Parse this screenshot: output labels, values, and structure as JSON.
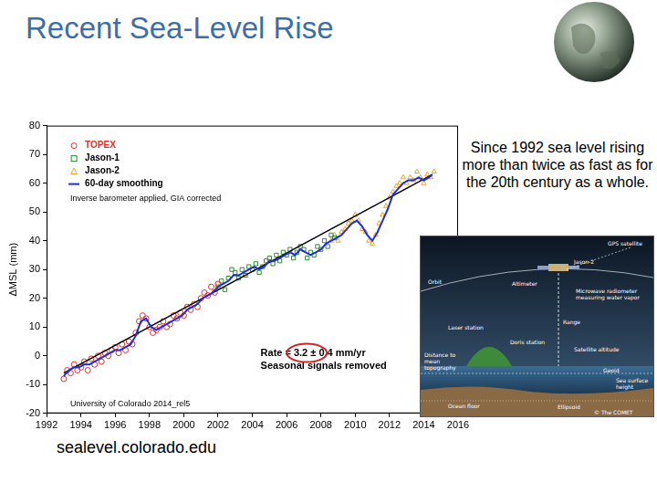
{
  "slide": {
    "title": "Recent Sea-Level Rise",
    "side_text": "Since 1992 sea level rising more than twice as fast as for the 20th century as a whole.",
    "source": "sealevel.colorado.edu"
  },
  "chart_data": {
    "type": "scatter",
    "y_label": "ΔMSL (mm)",
    "xlim": [
      1992,
      2016
    ],
    "xticks": [
      1992,
      1994,
      1996,
      1998,
      2000,
      2002,
      2004,
      2006,
      2008,
      2010,
      2012,
      2014,
      2016
    ],
    "ylim": [
      -20,
      80
    ],
    "yticks": [
      -20,
      -10,
      0,
      10,
      20,
      30,
      40,
      50,
      60,
      70,
      80
    ],
    "grid": false,
    "legend": "upper left",
    "annotations": {
      "note": "Inverse barometer applied, GIA corrected",
      "rate": "Rate = 3.2 ± 0.4 mm/yr",
      "seasonal": "Seasonal signals removed",
      "credit": "University of Colorado 2014_rel5"
    },
    "series": [
      {
        "name": "TOPEX",
        "color": "#e0302a",
        "marker": "circle",
        "x": [
          1993.0,
          1993.2,
          1993.4,
          1993.6,
          1993.8,
          1994.0,
          1994.2,
          1994.4,
          1994.6,
          1994.8,
          1995.0,
          1995.2,
          1995.4,
          1995.6,
          1995.8,
          1996.0,
          1996.2,
          1996.4,
          1996.6,
          1996.8,
          1997.0,
          1997.2,
          1997.4,
          1997.6,
          1997.8,
          1998.0,
          1998.2,
          1998.4,
          1998.6,
          1998.8,
          1999.0,
          1999.2,
          1999.4,
          1999.6,
          1999.8,
          2000.0,
          2000.2,
          2000.4,
          2000.6,
          2000.8,
          2001.0,
          2001.2,
          2001.4,
          2001.6,
          2001.8,
          2002.0
        ],
        "values": [
          -8,
          -5,
          -6,
          -3,
          -5,
          -4,
          -2,
          -5,
          -1,
          -3,
          0,
          -2,
          1,
          0,
          2,
          3,
          1,
          4,
          2,
          5,
          4,
          8,
          12,
          14,
          13,
          10,
          8,
          9,
          10,
          12,
          10,
          11,
          14,
          13,
          15,
          14,
          17,
          16,
          18,
          17,
          20,
          22,
          21,
          24,
          22,
          25
        ]
      },
      {
        "name": "Jason-1",
        "color": "#2e8b2e",
        "marker": "square",
        "x": [
          2002.0,
          2002.2,
          2002.4,
          2002.6,
          2002.8,
          2003.0,
          2003.2,
          2003.4,
          2003.6,
          2003.8,
          2004.0,
          2004.2,
          2004.4,
          2004.6,
          2004.8,
          2005.0,
          2005.2,
          2005.4,
          2005.6,
          2005.8,
          2006.0,
          2006.2,
          2006.4,
          2006.6,
          2006.8,
          2007.0,
          2007.2,
          2007.4,
          2007.6,
          2007.8,
          2008.0,
          2008.2,
          2008.4,
          2008.6,
          2008.8
        ],
        "values": [
          24,
          26,
          23,
          27,
          30,
          29,
          27,
          30,
          28,
          31,
          30,
          32,
          29,
          31,
          33,
          34,
          32,
          35,
          33,
          36,
          35,
          37,
          34,
          36,
          38,
          37,
          34,
          36,
          35,
          38,
          37,
          40,
          38,
          42,
          41
        ]
      },
      {
        "name": "Jason-2",
        "color": "#f0a020",
        "marker": "triangle",
        "x": [
          2008.6,
          2008.8,
          2009.0,
          2009.2,
          2009.4,
          2009.6,
          2009.8,
          2010.0,
          2010.2,
          2010.4,
          2010.6,
          2010.8,
          2011.0,
          2011.2,
          2011.4,
          2011.6,
          2011.8,
          2012.0,
          2012.2,
          2012.4,
          2012.6,
          2012.8,
          2013.0,
          2013.2,
          2013.4,
          2013.6,
          2013.8,
          2014.0,
          2014.2,
          2014.4,
          2014.6
        ],
        "values": [
          40,
          42,
          40,
          43,
          44,
          46,
          47,
          49,
          47,
          44,
          43,
          40,
          39,
          42,
          46,
          49,
          52,
          55,
          57,
          59,
          60,
          62,
          60,
          62,
          61,
          64,
          62,
          60,
          63,
          62,
          64
        ]
      },
      {
        "name": "60-day smoothing",
        "color": "#1f2fd8",
        "type": "line",
        "marker": "none",
        "x": [
          1993.0,
          1993.3,
          1993.6,
          1993.9,
          1994.2,
          1994.5,
          1994.8,
          1995.1,
          1995.4,
          1995.7,
          1996.0,
          1996.3,
          1996.6,
          1996.9,
          1997.2,
          1997.5,
          1997.8,
          1998.1,
          1998.4,
          1998.7,
          1999.0,
          1999.3,
          1999.6,
          1999.9,
          2000.2,
          2000.5,
          2000.8,
          2001.1,
          2001.4,
          2001.7,
          2002.0,
          2002.3,
          2002.6,
          2002.9,
          2003.2,
          2003.5,
          2003.8,
          2004.1,
          2004.4,
          2004.7,
          2005.0,
          2005.3,
          2005.6,
          2005.9,
          2006.2,
          2006.5,
          2006.8,
          2007.1,
          2007.4,
          2007.7,
          2008.0,
          2008.3,
          2008.6,
          2008.9,
          2009.2,
          2009.5,
          2009.8,
          2010.1,
          2010.4,
          2010.7,
          2011.0,
          2011.3,
          2011.6,
          2011.9,
          2012.2,
          2012.5,
          2012.8,
          2013.1,
          2013.4,
          2013.7,
          2014.0,
          2014.3,
          2014.5
        ],
        "values": [
          -7,
          -5,
          -4,
          -4,
          -3,
          -3,
          -2,
          -1,
          0,
          1,
          2,
          2,
          3,
          4,
          7,
          12,
          13,
          10,
          9,
          10,
          11,
          12,
          13,
          14,
          16,
          17,
          18,
          20,
          21,
          22,
          24,
          25,
          26,
          28,
          28,
          29,
          30,
          31,
          30,
          31,
          33,
          33,
          34,
          35,
          36,
          35,
          37,
          36,
          35,
          36,
          37,
          39,
          40,
          41,
          42,
          44,
          46,
          47,
          45,
          42,
          40,
          43,
          47,
          51,
          56,
          58,
          60,
          61,
          61,
          62,
          61,
          62,
          63
        ]
      },
      {
        "color": "#000000",
        "type": "line",
        "marker": "none",
        "x": [
          1993.0,
          2014.5
        ],
        "values": [
          -6,
          63
        ]
      }
    ]
  },
  "diagram": {
    "labels": [
      "GPS satellite",
      "Jason-2",
      "Orbit",
      "Altimeter",
      "Microwave radiometer measuring water vapor",
      "Range",
      "Laser station",
      "Doris station",
      "Distance to mean topography",
      "Satellite altitude",
      "Geoid",
      "Sea surface height",
      "Ocean floor",
      "Ellipsoid",
      "© The COMET Program"
    ]
  }
}
